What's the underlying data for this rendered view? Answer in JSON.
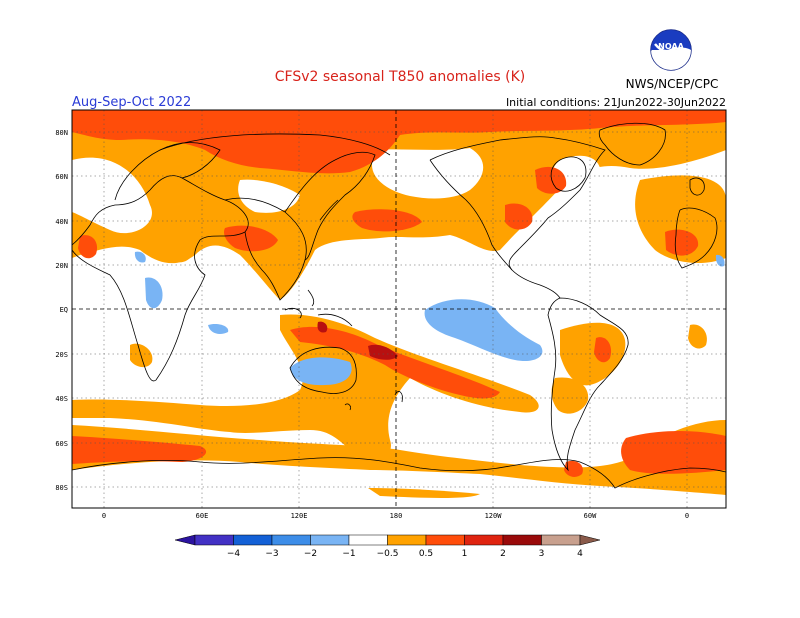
{
  "header": {
    "title": "CFSv2 seasonal T850 anomalies (K)",
    "season": "Aug-Sep-Oct 2022",
    "initial_conditions": "Initial conditions: 21Jun2022-30Jun2022",
    "organization": "NWS/NCEP/CPC",
    "logo_text": "NOAA"
  },
  "map": {
    "lat_labels": [
      "80N",
      "60N",
      "40N",
      "20N",
      "EQ",
      "20S",
      "40S",
      "60S",
      "80S"
    ],
    "lon_labels": [
      "0",
      "60E",
      "120E",
      "180",
      "120W",
      "60W",
      "0"
    ]
  },
  "legend": {
    "labels": [
      "−4",
      "−3",
      "−2",
      "−1",
      "−0.5",
      "0.5",
      "1",
      "2",
      "3",
      "4"
    ],
    "colors": [
      "#2c13a0",
      "#4231c4",
      "#1360d6",
      "#3d8de8",
      "#79b4f4",
      "#ffffff",
      "#ffa200",
      "#ff4d0a",
      "#df2410",
      "#9a0a0a",
      "#c8a08e",
      "#8a5a4a"
    ]
  },
  "colors": {
    "weak_warm": "#ffa200",
    "moderate_warm": "#ff4d0a",
    "strong_warm": "#b81010",
    "weak_cool": "#79b4f4",
    "title": "#d8241c",
    "season": "#2a3bd6"
  }
}
